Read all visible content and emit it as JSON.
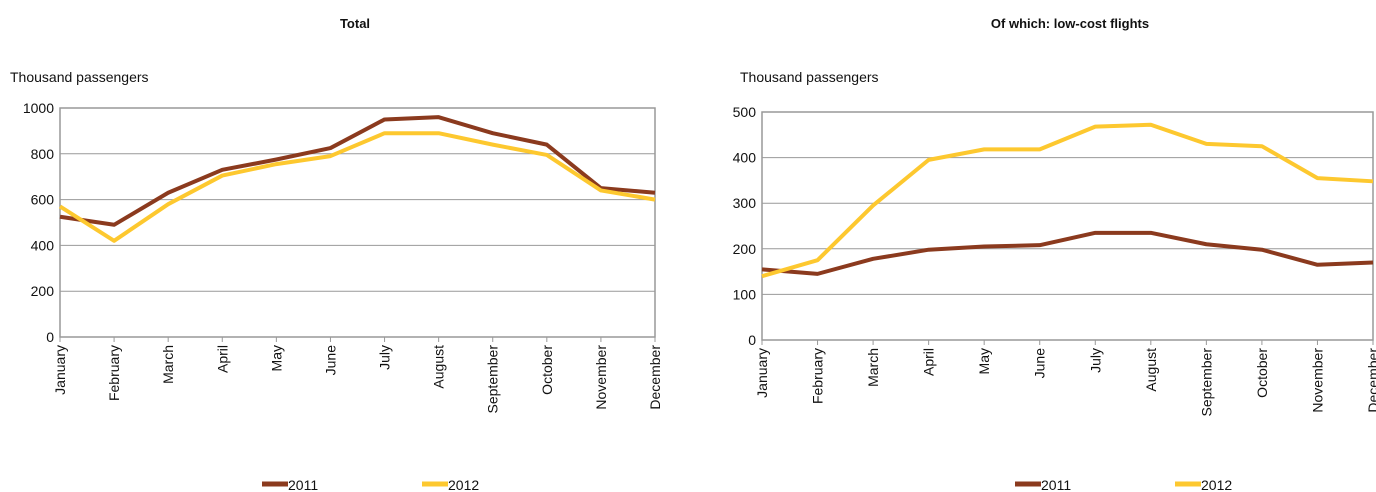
{
  "chart_data": [
    {
      "type": "line",
      "title": "Total",
      "y_axis_label": "Thousand passengers",
      "categories": [
        "January",
        "February",
        "March",
        "April",
        "May",
        "June",
        "July",
        "August",
        "September",
        "October",
        "November",
        "December"
      ],
      "series": [
        {
          "name": "2011",
          "color": "#8b3a1e",
          "values": [
            525,
            490,
            630,
            730,
            775,
            825,
            950,
            960,
            890,
            840,
            650,
            630
          ]
        },
        {
          "name": "2012",
          "color": "#fdc82f",
          "values": [
            570,
            420,
            580,
            705,
            755,
            790,
            890,
            890,
            840,
            795,
            640,
            600
          ]
        }
      ],
      "ylim": [
        0,
        1000
      ],
      "yticks": [
        0,
        200,
        400,
        600,
        800,
        1000
      ],
      "grid": true,
      "legend": "bottom"
    },
    {
      "type": "line",
      "title": "Of which: low-cost flights",
      "y_axis_label": "Thousand passengers",
      "categories": [
        "January",
        "February",
        "March",
        "April",
        "May",
        "June",
        "July",
        "August",
        "September",
        "October",
        "November",
        "December"
      ],
      "series": [
        {
          "name": "2011",
          "color": "#8b3a1e",
          "values": [
            155,
            145,
            178,
            198,
            205,
            208,
            235,
            235,
            210,
            198,
            165,
            170
          ]
        },
        {
          "name": "2012",
          "color": "#fdc82f",
          "values": [
            140,
            175,
            295,
            395,
            418,
            418,
            468,
            472,
            430,
            425,
            355,
            348
          ]
        }
      ],
      "ylim": [
        0,
        500
      ],
      "yticks": [
        0,
        100,
        200,
        300,
        400,
        500
      ],
      "grid": true,
      "legend": "bottom"
    }
  ]
}
